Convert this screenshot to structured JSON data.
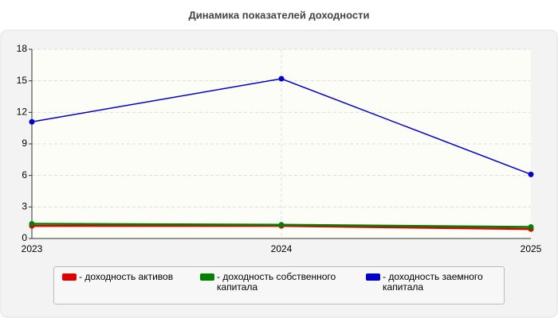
{
  "chart_data": {
    "type": "line",
    "title": "Динамика показателей доходности",
    "categories": [
      "2023",
      "2024",
      "2025"
    ],
    "series": [
      {
        "name": "- доходность активов",
        "color": "#e00000",
        "values": [
          1.2,
          1.2,
          0.9
        ]
      },
      {
        "name": "- доходность собственного капитала",
        "color": "#008000",
        "values": [
          1.4,
          1.3,
          1.1
        ]
      },
      {
        "name": "- доходность заемного капитала",
        "color": "#0000cc",
        "values": [
          11.1,
          15.2,
          6.1
        ]
      }
    ],
    "ylim": [
      0,
      18
    ],
    "yticks": [
      0,
      3,
      6,
      9,
      12,
      15,
      18
    ],
    "grid": true
  }
}
